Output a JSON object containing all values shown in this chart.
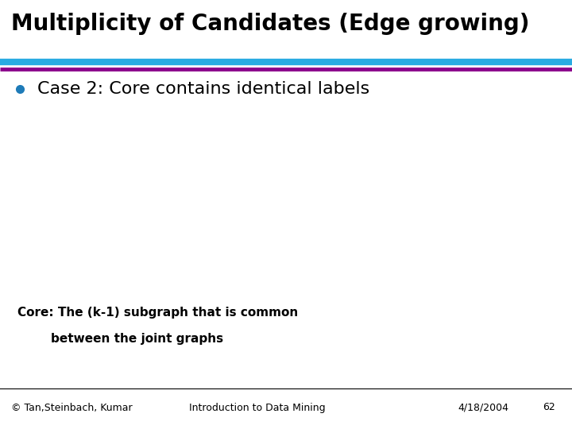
{
  "title": "Multiplicity of Candidates (Edge growing)",
  "title_color": "#000000",
  "title_fontsize": 20,
  "bg_color": "#ffffff",
  "line1_color": "#29ABE2",
  "line2_color": "#8B008B",
  "bullet_color": "#1E7BB8",
  "bullet_text": "Case 2: Core contains identical labels",
  "bullet_fontsize": 16,
  "core_text_line1": "Core: The (k-1) subgraph that is common",
  "core_text_line2": "        between the joint graphs",
  "core_fontsize": 11,
  "footer_left": "© Tan,Steinbach, Kumar",
  "footer_center": "Introduction to Data Mining",
  "footer_right": "4/18/2004",
  "footer_page": "62",
  "footer_fontsize": 9,
  "footer_line_color": "#000000"
}
